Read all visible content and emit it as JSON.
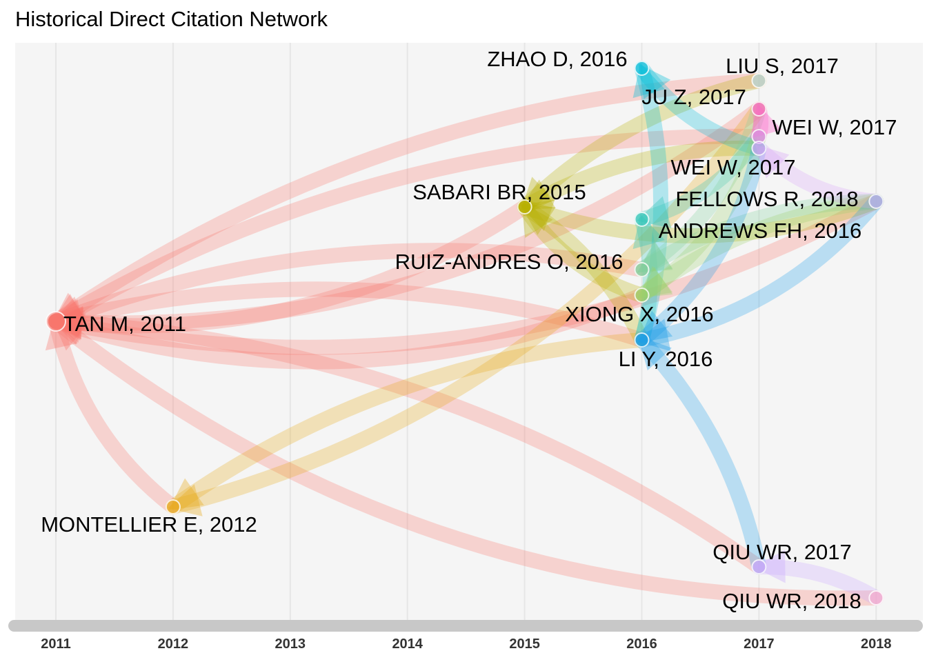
{
  "title": "Historical Direct Citation Network",
  "chart_data": {
    "type": "network",
    "x_axis": {
      "ticks": [
        "2011",
        "2012",
        "2013",
        "2014",
        "2015",
        "2016",
        "2017",
        "2018"
      ]
    },
    "nodes": [
      {
        "id": "tan2011",
        "label": "TAN M, 2011",
        "year": 2011,
        "color": "#f8766d"
      },
      {
        "id": "montellier2012",
        "label": "MONTELLIER E, 2012",
        "year": 2012,
        "color": "#e7a817"
      },
      {
        "id": "sabari2015",
        "label": "SABARI BR, 2015",
        "year": 2015,
        "color": "#b8b000"
      },
      {
        "id": "zhao2016",
        "label": "ZHAO D, 2016",
        "year": 2016,
        "color": "#00bcd8"
      },
      {
        "id": "andrews2016",
        "label": "ANDREWS FH, 2016",
        "year": 2016,
        "color": "#2ec4b6"
      },
      {
        "id": "ruiz2016",
        "label": "RUIZ-ANDRES O, 2016",
        "year": 2016,
        "color": "#7fcf9a"
      },
      {
        "id": "xiong2016",
        "label": "XIONG X, 2016",
        "year": 2016,
        "color": "#9bd16b"
      },
      {
        "id": "liy2016",
        "label": "LI Y, 2016",
        "year": 2016,
        "color": "#1e9ee8"
      },
      {
        "id": "lius2017",
        "label": "LIU S, 2017",
        "year": 2017,
        "color": "#a6d8ee"
      },
      {
        "id": "juz2017",
        "label": "JU Z, 2017",
        "year": 2017,
        "color": "#ff5fc8"
      },
      {
        "id": "weiw2017a",
        "label": "WEI W, 2017",
        "year": 2017,
        "color": "#e58cf5"
      },
      {
        "id": "weiw2017b",
        "label": "WEI W, 2017",
        "year": 2017,
        "color": "#d7a3f7"
      },
      {
        "id": "qiu2017",
        "label": "QIU WR, 2017",
        "year": 2017,
        "color": "#c9a6ff"
      },
      {
        "id": "fellows2018",
        "label": "FELLOWS R, 2018",
        "year": 2018,
        "color": "#b9aefb"
      },
      {
        "id": "qiu2018",
        "label": "QIU WR, 2018",
        "year": 2018,
        "color": "#f6a6cf"
      }
    ],
    "edges": [
      {
        "source": "tan2011",
        "target": "sabari2015"
      },
      {
        "source": "tan2011",
        "target": "lius2017"
      },
      {
        "source": "tan2011",
        "target": "juz2017"
      },
      {
        "source": "tan2011",
        "target": "weiw2017a"
      },
      {
        "source": "tan2011",
        "target": "fellows2018"
      },
      {
        "source": "tan2011",
        "target": "ruiz2016"
      },
      {
        "source": "tan2011",
        "target": "xiong2016"
      },
      {
        "source": "tan2011",
        "target": "liy2016"
      },
      {
        "source": "tan2011",
        "target": "montellier2012"
      },
      {
        "source": "tan2011",
        "target": "qiu2017"
      },
      {
        "source": "tan2011",
        "target": "qiu2018"
      },
      {
        "source": "montellier2012",
        "target": "liy2016"
      },
      {
        "source": "montellier2012",
        "target": "juz2017"
      },
      {
        "source": "sabari2015",
        "target": "lius2017"
      },
      {
        "source": "sabari2015",
        "target": "fellows2018"
      },
      {
        "source": "sabari2015",
        "target": "liy2016"
      },
      {
        "source": "sabari2015",
        "target": "xiong2016"
      },
      {
        "source": "sabari2015",
        "target": "weiw2017b"
      },
      {
        "source": "zhao2016",
        "target": "weiw2017b"
      },
      {
        "source": "zhao2016",
        "target": "liy2016"
      },
      {
        "source": "andrews2016",
        "target": "weiw2017a"
      },
      {
        "source": "andrews2016",
        "target": "liy2016"
      },
      {
        "source": "ruiz2016",
        "target": "juz2017"
      },
      {
        "source": "ruiz2016",
        "target": "fellows2018"
      },
      {
        "source": "xiong2016",
        "target": "weiw2017a"
      },
      {
        "source": "xiong2016",
        "target": "fellows2018"
      },
      {
        "source": "liy2016",
        "target": "fellows2018"
      },
      {
        "source": "liy2016",
        "target": "qiu2017"
      },
      {
        "source": "liy2016",
        "target": "weiw2017b"
      },
      {
        "source": "juz2017",
        "target": "weiw2017a"
      },
      {
        "source": "weiw2017b",
        "target": "fellows2018"
      },
      {
        "source": "qiu2017",
        "target": "qiu2018"
      }
    ]
  }
}
